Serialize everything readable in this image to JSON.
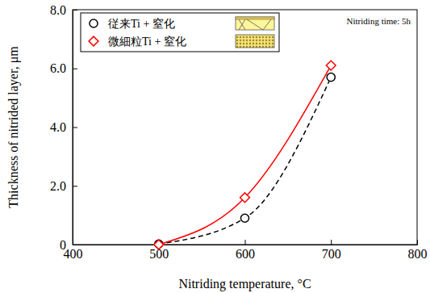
{
  "chart_data": {
    "type": "scatter",
    "annotation": "Nitriding time: 5h",
    "x_label": "Nitriding temperature, °C",
    "y_label": "Thickness of nitrided layer, μm",
    "x": [
      500,
      600,
      700
    ],
    "series": [
      {
        "name": "従来Ti + 窒化",
        "color": "#000000",
        "marker": "circle",
        "line_style": "dashed",
        "values": [
          0.02,
          0.9,
          5.7
        ]
      },
      {
        "name": "微細粒Ti + 窒化",
        "color": "#ff0000",
        "marker": "diamond",
        "line_style": "solid",
        "values": [
          0.0,
          1.6,
          6.1
        ]
      }
    ],
    "xlim": [
      400,
      800
    ],
    "xticks": [
      400,
      500,
      600,
      700,
      800
    ],
    "ylim": [
      0,
      8
    ],
    "yticks": [
      0,
      {
        "value": 2,
        "label": "2.0"
      },
      {
        "value": 4,
        "label": "4.0"
      },
      {
        "value": 6,
        "label": "6.0"
      },
      {
        "value": 8,
        "label": "8.0"
      }
    ],
    "legend": "upper left",
    "grid": false
  }
}
